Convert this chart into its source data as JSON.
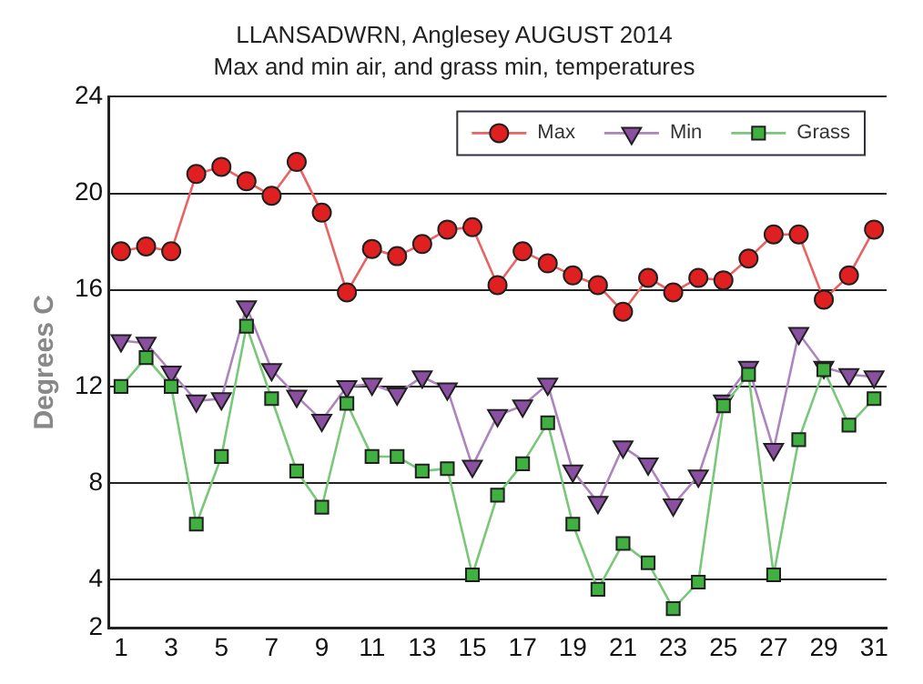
{
  "chart_data": {
    "type": "line",
    "title": "LLANSADWRN, Anglesey AUGUST 2014",
    "subtitle": "Max and min air, and grass min, temperatures",
    "ylabel": "Degrees C",
    "x": [
      1,
      2,
      3,
      4,
      5,
      6,
      7,
      8,
      9,
      10,
      11,
      12,
      13,
      14,
      15,
      16,
      17,
      18,
      19,
      20,
      21,
      22,
      23,
      24,
      25,
      26,
      27,
      28,
      29,
      30,
      31
    ],
    "series": [
      {
        "name": "Max",
        "color": "#e02020",
        "marker": "circle",
        "values": [
          17.6,
          17.8,
          17.6,
          20.8,
          21.1,
          20.5,
          19.9,
          21.3,
          19.2,
          15.9,
          17.7,
          17.4,
          17.9,
          18.5,
          18.6,
          16.2,
          17.6,
          17.1,
          16.6,
          16.2,
          15.1,
          16.5,
          15.9,
          16.5,
          16.4,
          17.3,
          18.3,
          18.3,
          15.6,
          16.6,
          18.5
        ]
      },
      {
        "name": "Min",
        "color": "#8a4fa0",
        "marker": "triangle",
        "values": [
          13.9,
          13.8,
          12.6,
          11.4,
          11.5,
          15.3,
          12.7,
          11.6,
          10.6,
          12.0,
          12.1,
          11.7,
          12.4,
          11.9,
          8.7,
          10.8,
          11.2,
          12.1,
          8.5,
          7.2,
          9.5,
          8.8,
          7.1,
          8.3,
          11.4,
          12.8,
          9.4,
          14.2,
          12.8,
          12.5,
          12.4
        ]
      },
      {
        "name": "Grass",
        "color": "#40b040",
        "marker": "square",
        "values": [
          12.0,
          13.2,
          12.0,
          6.3,
          9.1,
          14.5,
          11.5,
          8.5,
          7.0,
          11.3,
          9.1,
          9.1,
          8.5,
          8.6,
          4.2,
          7.5,
          8.8,
          10.5,
          6.3,
          3.6,
          5.5,
          4.7,
          2.8,
          3.9,
          11.2,
          12.5,
          4.2,
          9.8,
          12.7,
          10.4,
          11.5
        ]
      }
    ],
    "xlim": [
      0.5,
      31.5
    ],
    "xticks": [
      1,
      3,
      5,
      7,
      9,
      11,
      13,
      15,
      17,
      19,
      21,
      23,
      25,
      27,
      29,
      31
    ],
    "ylim": [
      2,
      24
    ],
    "yticks": [
      2,
      4,
      8,
      12,
      16,
      20,
      24
    ],
    "grid": "y",
    "legend": "top right",
    "line_style": "solid"
  }
}
